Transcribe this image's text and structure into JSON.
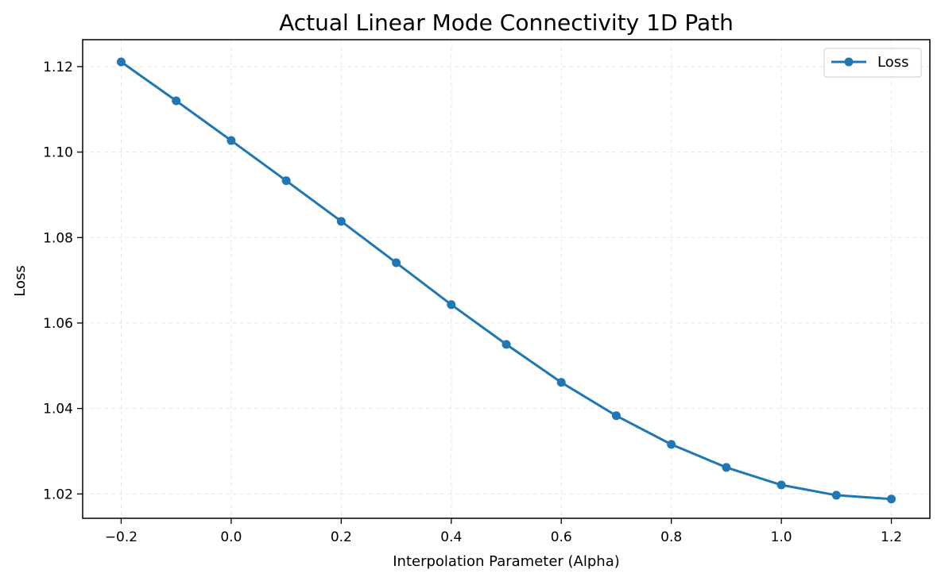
{
  "chart_data": {
    "type": "line",
    "title": "Actual Linear Mode Connectivity 1D Path",
    "xlabel": "Interpolation Parameter (Alpha)",
    "ylabel": "Loss",
    "xlim": [
      -0.27,
      1.27
    ],
    "ylim": [
      1.0143,
      1.1263
    ],
    "xticks": [
      -0.2,
      0.0,
      0.2,
      0.4,
      0.6,
      0.8,
      1.0,
      1.2
    ],
    "xtick_labels": [
      "−0.2",
      "0.0",
      "0.2",
      "0.4",
      "0.6",
      "0.8",
      "1.0",
      "1.2"
    ],
    "yticks": [
      1.02,
      1.04,
      1.06,
      1.08,
      1.1,
      1.12
    ],
    "ytick_labels": [
      "1.02",
      "1.04",
      "1.06",
      "1.08",
      "1.10",
      "1.12"
    ],
    "grid": true,
    "legend_position": "top-right",
    "series": [
      {
        "name": "Loss",
        "color": "#1f77b4",
        "marker": "circle",
        "x": [
          -0.2,
          -0.1,
          0.0,
          0.1,
          0.2,
          0.3,
          0.4,
          0.5,
          0.6,
          0.7,
          0.8,
          0.9,
          1.0,
          1.1,
          1.2
        ],
        "y": [
          1.1211,
          1.112,
          1.1027,
          1.0933,
          1.0838,
          1.0741,
          1.0643,
          1.055,
          1.0461,
          1.0383,
          1.0316,
          1.0262,
          1.0221,
          1.0197,
          1.0188
        ]
      }
    ]
  }
}
